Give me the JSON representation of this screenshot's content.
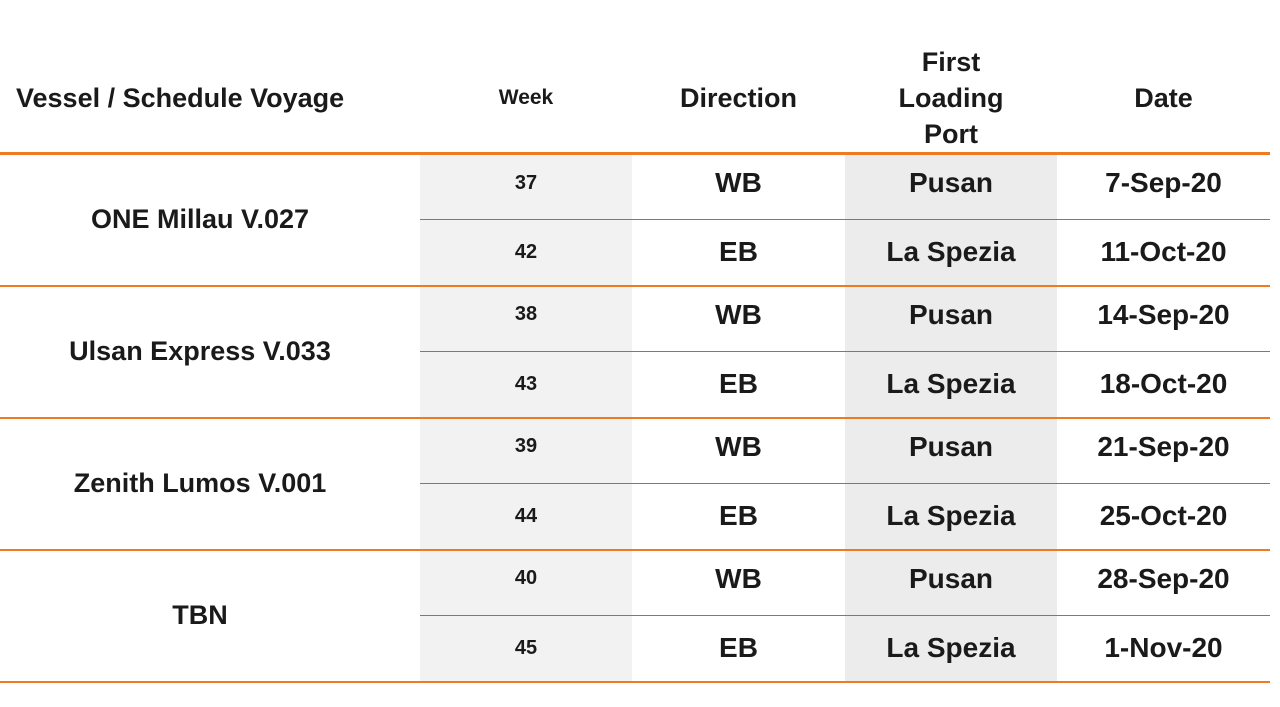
{
  "headers": {
    "vessel": "Vessel / Schedule Voyage",
    "week": "Week",
    "direction": "Direction",
    "port_line1": "First",
    "port_line2": "Loading",
    "port_line3": "Port",
    "date": "Date"
  },
  "voyages": [
    {
      "vessel": "ONE Millau V.027",
      "legs": [
        {
          "week": "37",
          "direction": "WB",
          "port": "Pusan",
          "date": "7-Sep-20"
        },
        {
          "week": "42",
          "direction": "EB",
          "port": "La Spezia",
          "date": "11-Oct-20"
        }
      ]
    },
    {
      "vessel": "Ulsan Express V.033",
      "legs": [
        {
          "week": "38",
          "direction": "WB",
          "port": "Pusan",
          "date": "14-Sep-20"
        },
        {
          "week": "43",
          "direction": "EB",
          "port": "La Spezia",
          "date": "18-Oct-20"
        }
      ]
    },
    {
      "vessel": "Zenith Lumos V.001",
      "legs": [
        {
          "week": "39",
          "direction": "WB",
          "port": "Pusan",
          "date": "21-Sep-20"
        },
        {
          "week": "44",
          "direction": "EB",
          "port": "La Spezia",
          "date": "25-Oct-20"
        }
      ]
    },
    {
      "vessel": "TBN",
      "legs": [
        {
          "week": "40",
          "direction": "WB",
          "port": "Pusan",
          "date": "28-Sep-20"
        },
        {
          "week": "45",
          "direction": "EB",
          "port": "La Spezia",
          "date": "1-Nov-20"
        }
      ]
    }
  ],
  "colors": {
    "accent": "#ee7a22",
    "row_divider": "#7a7a7a",
    "shade_week": "#f2f2f2",
    "shade_port": "#ececec"
  }
}
